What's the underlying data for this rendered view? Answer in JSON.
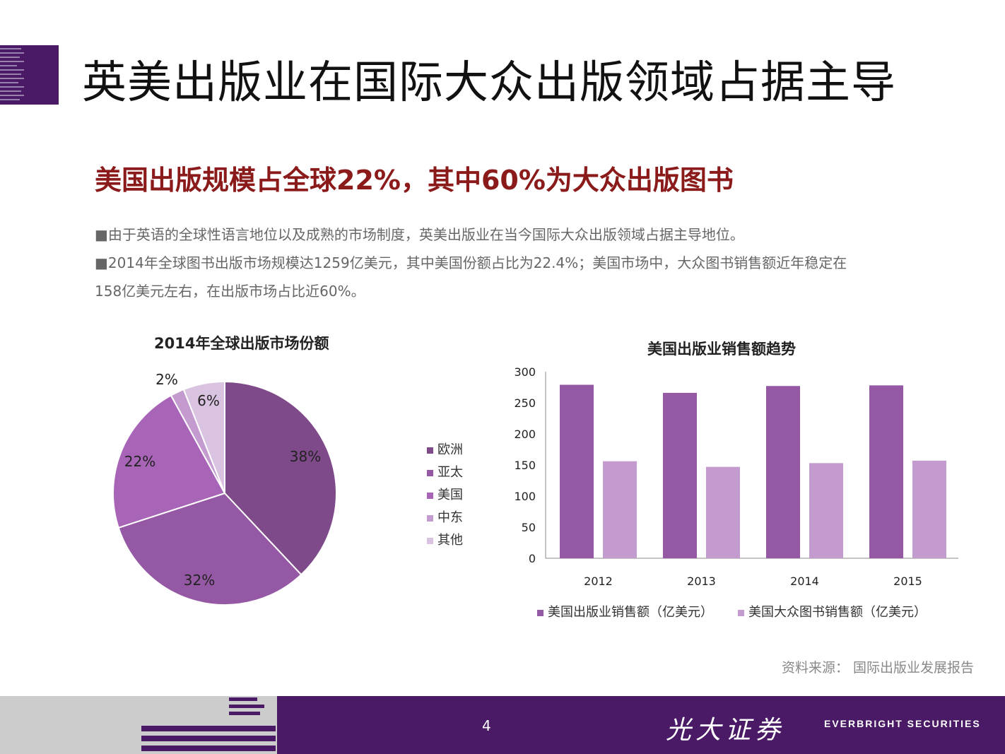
{
  "header": {
    "title": "英美出版业在国际大众出版领域占据主导"
  },
  "subtitle": "美国出版规模占全球22%，其中60%为大众出版图书",
  "bullets": {
    "marker": "■",
    "line1": "由于英语的全球性语言地位以及成熟的市场制度，英美出版业在当今国际大众出版领域占据主导地位。",
    "line2": "2014年全球图书出版市场规模达1259亿美元，其中美国份额占比为22.4%；美国市场中，大众图书销售额近年稳定在",
    "line3": "158亿美元左右，在出版市场占比近60%。"
  },
  "chart_data": [
    {
      "type": "pie",
      "title": "2014年全球出版市场份额",
      "slices": [
        {
          "name": "欧洲",
          "value": 38,
          "label": "38%",
          "color": "#7f4a8a"
        },
        {
          "name": "亚太",
          "value": 32,
          "label": "32%",
          "color": "#9558a4"
        },
        {
          "name": "美国",
          "value": 22,
          "label": "22%",
          "color": "#a865b8"
        },
        {
          "name": "中东",
          "value": 2,
          "label": "2%",
          "color": "#c49bce"
        },
        {
          "name": "其他",
          "value": 6,
          "label": "6%",
          "color": "#d9c3e0"
        }
      ],
      "legend_position": "right"
    },
    {
      "type": "bar",
      "title": "美国出版业销售额趋势",
      "categories": [
        "2012",
        "2013",
        "2014",
        "2015"
      ],
      "series": [
        {
          "name": "美国出版业销售额（亿美元）",
          "values": [
            279,
            266,
            277,
            278
          ],
          "color": "#9558a4"
        },
        {
          "name": "美国大众图书销售额（亿美元）",
          "values": [
            156,
            147,
            153,
            157
          ],
          "color": "#c49bce"
        }
      ],
      "ylim": [
        0,
        300
      ],
      "yticks": [
        "0",
        "50",
        "100",
        "150",
        "200",
        "250",
        "300"
      ],
      "grid": false,
      "legend_position": "bottom"
    }
  ],
  "source": "资料来源：  国际出版业发展报告",
  "footer": {
    "page_number": "4",
    "brand_cn": "光大证券",
    "brand_en": "EVERBRIGHT SECURITIES",
    "brand_color": "#4a1a66"
  }
}
